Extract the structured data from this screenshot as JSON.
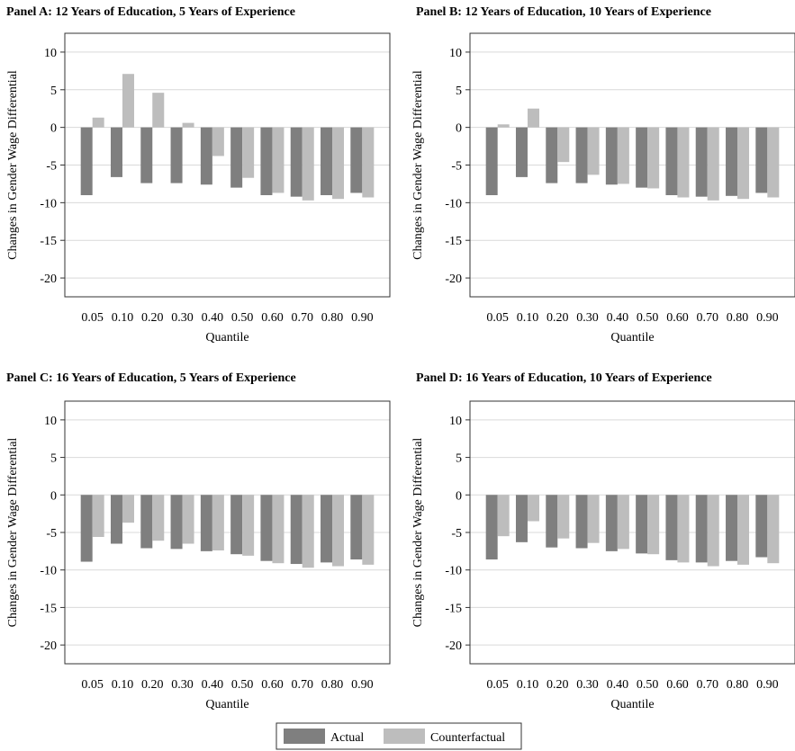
{
  "chart_data": [
    {
      "type": "bar",
      "title": "Panel A: 12 Years of Education, 5 Years of Experience",
      "xlabel": "Quantile",
      "ylabel": "Changes in Gender Wage Differential",
      "ylim": [
        -22.5,
        12.5
      ],
      "yticks": [
        10,
        5,
        0,
        -5,
        -10,
        -15,
        -20
      ],
      "grid": true,
      "categories": [
        "0.05",
        "0.10",
        "0.20",
        "0.30",
        "0.40",
        "0.50",
        "0.60",
        "0.70",
        "0.80",
        "0.90"
      ],
      "series": [
        {
          "name": "Actual",
          "values": [
            -9.0,
            -6.6,
            -7.4,
            -7.4,
            -7.6,
            -8.0,
            -9.0,
            -9.2,
            -9.0,
            -8.7
          ]
        },
        {
          "name": "Counterfactual",
          "values": [
            1.3,
            7.1,
            4.6,
            0.6,
            -3.8,
            -6.7,
            -8.7,
            -9.7,
            -9.5,
            -9.3
          ]
        }
      ]
    },
    {
      "type": "bar",
      "title": "Panel B: 12 Years of Education, 10 Years of Experience",
      "xlabel": "Quantile",
      "ylabel": "Changes in Gender Wage Differential",
      "ylim": [
        -22.5,
        12.5
      ],
      "yticks": [
        10,
        5,
        0,
        -5,
        -10,
        -15,
        -20
      ],
      "grid": true,
      "categories": [
        "0.05",
        "0.10",
        "0.20",
        "0.30",
        "0.40",
        "0.50",
        "0.60",
        "0.70",
        "0.80",
        "0.90"
      ],
      "series": [
        {
          "name": "Actual",
          "values": [
            -9.0,
            -6.6,
            -7.4,
            -7.4,
            -7.6,
            -8.0,
            -9.0,
            -9.2,
            -9.1,
            -8.7
          ]
        },
        {
          "name": "Counterfactual",
          "values": [
            0.4,
            2.5,
            -4.6,
            -6.3,
            -7.5,
            -8.1,
            -9.3,
            -9.7,
            -9.5,
            -9.3
          ]
        }
      ]
    },
    {
      "type": "bar",
      "title": "Panel C: 16 Years of Education, 5 Years of Experience",
      "xlabel": "Quantile",
      "ylabel": "Changes in Gender Wage Differential",
      "ylim": [
        -22.5,
        12.5
      ],
      "yticks": [
        10,
        5,
        0,
        -5,
        -10,
        -15,
        -20
      ],
      "grid": true,
      "categories": [
        "0.05",
        "0.10",
        "0.20",
        "0.30",
        "0.40",
        "0.50",
        "0.60",
        "0.70",
        "0.80",
        "0.90"
      ],
      "series": [
        {
          "name": "Actual",
          "values": [
            -8.9,
            -6.5,
            -7.1,
            -7.2,
            -7.5,
            -7.9,
            -8.8,
            -9.2,
            -9.0,
            -8.6
          ]
        },
        {
          "name": "Counterfactual",
          "values": [
            -5.6,
            -3.7,
            -6.1,
            -6.5,
            -7.4,
            -8.1,
            -9.1,
            -9.7,
            -9.5,
            -9.3
          ]
        }
      ]
    },
    {
      "type": "bar",
      "title": "Panel D: 16 Years of Education, 10 Years of Experience",
      "xlabel": "Quantile",
      "ylabel": "Changes in Gender Wage Differential",
      "ylim": [
        -22.5,
        12.5
      ],
      "yticks": [
        10,
        5,
        0,
        -5,
        -10,
        -15,
        -20
      ],
      "grid": true,
      "categories": [
        "0.05",
        "0.10",
        "0.20",
        "0.30",
        "0.40",
        "0.50",
        "0.60",
        "0.70",
        "0.80",
        "0.90"
      ],
      "series": [
        {
          "name": "Actual",
          "values": [
            -8.6,
            -6.3,
            -7.0,
            -7.1,
            -7.5,
            -7.8,
            -8.7,
            -9.0,
            -8.8,
            -8.3
          ]
        },
        {
          "name": "Counterfactual",
          "values": [
            -5.5,
            -3.5,
            -5.8,
            -6.4,
            -7.2,
            -7.9,
            -9.0,
            -9.5,
            -9.3,
            -9.1
          ]
        }
      ]
    }
  ],
  "legend": {
    "items": [
      {
        "label": "Actual",
        "color": "#7f7f7f"
      },
      {
        "label": "Counterfactual",
        "color": "#bdbdbd"
      }
    ]
  },
  "colors": {
    "actual": "#7f7f7f",
    "counterfactual": "#bdbdbd",
    "grid": "#d9d9d9",
    "axis": "#333333"
  }
}
